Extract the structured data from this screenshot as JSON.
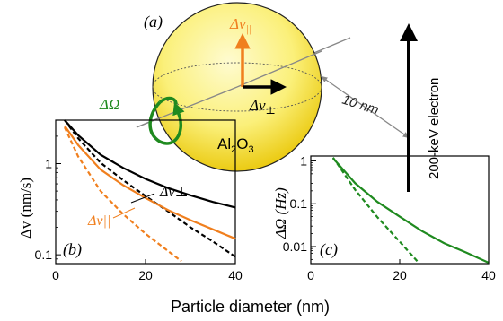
{
  "diagram": {
    "panel_label": "(a)",
    "velocity_parallel_label": "Δv",
    "velocity_parallel_sub": "||",
    "velocity_perp_label": "Δv",
    "velocity_perp_sub": "⊥",
    "rotation_label": "ΔΩ",
    "distance_label": "10 nm",
    "particle_label": "Al",
    "particle_sub1": "2",
    "particle_mid": "O",
    "particle_sub2": "3",
    "electron_label": "200-keV electron",
    "colors": {
      "parallel": "#f07f1e",
      "rotation": "#1f8a1f",
      "perp": "#000000",
      "sphere_center": "#fbf59a",
      "sphere_edge": "#e6c200"
    }
  },
  "xlabel_shared": "Particle diameter (nm)",
  "chart_data": [
    {
      "type": "line",
      "panel_label": "(b)",
      "ylabel": "Δv (nm/s)",
      "yscale": "log",
      "xlim": [
        0,
        40
      ],
      "ylim": [
        0.08,
        3
      ],
      "xticks": [
        "0",
        "20",
        "40"
      ],
      "yticks": [
        "0.1",
        "1"
      ],
      "series": [
        {
          "name": "Δv⊥",
          "color": "#000000",
          "dash": false,
          "x": [
            2,
            5,
            10,
            15,
            20,
            25,
            30,
            35,
            40
          ],
          "y": [
            3.0,
            2.05,
            1.25,
            0.9,
            0.68,
            0.54,
            0.45,
            0.38,
            0.33
          ]
        },
        {
          "color": "#000000",
          "dash": true,
          "x": [
            2,
            5,
            10,
            15,
            20,
            25,
            30,
            35,
            40
          ],
          "y": [
            3.0,
            1.9,
            1.02,
            0.66,
            0.44,
            0.3,
            0.2,
            0.14,
            0.095
          ]
        },
        {
          "name": "Δv||",
          "color": "#f07f1e",
          "dash": false,
          "x": [
            2,
            5,
            10,
            15,
            20,
            25,
            30,
            35,
            40
          ],
          "y": [
            2.6,
            1.6,
            0.86,
            0.58,
            0.42,
            0.31,
            0.24,
            0.19,
            0.15
          ]
        },
        {
          "color": "#f07f1e",
          "dash": true,
          "x": [
            2,
            5,
            10,
            15,
            20,
            25,
            28
          ],
          "y": [
            2.5,
            1.2,
            0.5,
            0.28,
            0.17,
            0.11,
            0.085
          ]
        }
      ]
    },
    {
      "type": "line",
      "panel_label": "(c)",
      "ylabel": "ΔΩ (Hz)",
      "yscale": "log",
      "xlim": [
        0,
        40
      ],
      "ylim": [
        0.004,
        1.3
      ],
      "xticks": [
        "0",
        "20",
        "40"
      ],
      "yticks": [
        "0.01",
        "0.1",
        "1"
      ],
      "series": [
        {
          "color": "#1f8a1f",
          "dash": false,
          "x": [
            5,
            10,
            15,
            20,
            25,
            30,
            35,
            40
          ],
          "y": [
            1.15,
            0.3,
            0.11,
            0.05,
            0.023,
            0.012,
            0.0072,
            0.0042
          ]
        },
        {
          "color": "#1f8a1f",
          "dash": true,
          "x": [
            5,
            10,
            15,
            20,
            24
          ],
          "y": [
            1.2,
            0.21,
            0.048,
            0.013,
            0.0045
          ]
        }
      ]
    }
  ]
}
